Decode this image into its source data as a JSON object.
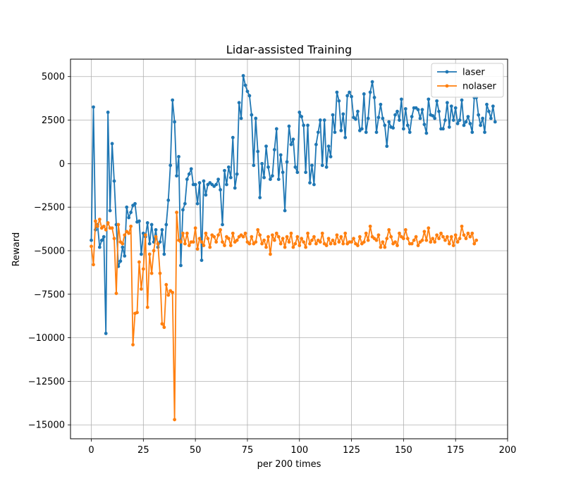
{
  "chart_data": {
    "type": "line",
    "title": "Lidar-assisted Training",
    "xlabel": "per 200 times",
    "ylabel": "Reward",
    "xlim": [
      -10,
      200
    ],
    "ylim": [
      -15800,
      6000
    ],
    "x_ticks": [
      0,
      25,
      50,
      75,
      100,
      125,
      150,
      175,
      200
    ],
    "y_ticks": [
      -15000,
      -12500,
      -10000,
      -7500,
      -5000,
      -2500,
      0,
      2500,
      5000
    ],
    "grid": true,
    "legend_position": "top-right",
    "series": [
      {
        "name": "laser",
        "color": "#1f77b4",
        "values": [
          -4400,
          3250,
          -3800,
          -3500,
          -4800,
          -4400,
          -4200,
          -9750,
          2950,
          -2700,
          1150,
          -1000,
          -3500,
          -5900,
          -5600,
          -4800,
          -5300,
          -2500,
          -3100,
          -2800,
          -2400,
          -2300,
          -3350,
          -3300,
          -5200,
          -4000,
          -4200,
          -3400,
          -4600,
          -3500,
          -4500,
          -3800,
          -4800,
          -4500,
          -3800,
          -5200,
          -3500,
          -2100,
          -100,
          3650,
          2400,
          -700,
          400,
          -5850,
          -2650,
          -2300,
          -900,
          -600,
          -300,
          -1200,
          -1200,
          -2300,
          -1100,
          -5550,
          -1000,
          -1800,
          -1200,
          -1100,
          -1200,
          -1300,
          -1200,
          -900,
          -1500,
          -3500,
          -400,
          -1200,
          -200,
          -800,
          1500,
          -1400,
          -600,
          3500,
          2600,
          5050,
          4500,
          4150,
          3900,
          2800,
          -100,
          2600,
          700,
          -1950,
          0,
          -800,
          1000,
          -200,
          -900,
          -700,
          800,
          2000,
          -900,
          500,
          -500,
          -2700,
          100,
          2150,
          1100,
          1400,
          -200,
          -500,
          2950,
          2700,
          2200,
          -500,
          2200,
          -1100,
          -100,
          -1200,
          1100,
          1800,
          2500,
          -100,
          2500,
          -200,
          1000,
          400,
          2800,
          1800,
          4100,
          3600,
          1900,
          2850,
          1500,
          3900,
          4100,
          3850,
          2650,
          2550,
          3000,
          1900,
          2000,
          4000,
          1800,
          2600,
          4100,
          4700,
          3800,
          1800,
          2650,
          3400,
          2600,
          2200,
          1000,
          2400,
          2100,
          2050,
          2800,
          3000,
          2500,
          3700,
          2000,
          3150,
          2200,
          1800,
          2700,
          3200,
          3200,
          3100,
          2600,
          3100,
          2250,
          1750,
          3700,
          2800,
          2750,
          2600,
          3600,
          3000,
          2000,
          2000,
          2500,
          3500,
          2100,
          3300,
          2500,
          3200,
          2300,
          2500,
          3650,
          2200,
          2400,
          2700,
          2300,
          1800,
          3800,
          3800,
          2800,
          2200,
          2600,
          1800,
          3400,
          3000,
          2600,
          3300,
          2400
        ]
      },
      {
        "name": "nolaser",
        "color": "#ff7f0e",
        "values": [
          -4750,
          -5800,
          -3300,
          -3600,
          -3200,
          -3700,
          -3600,
          -3800,
          -3400,
          -3700,
          -3700,
          -4300,
          -7450,
          -3500,
          -4500,
          -4600,
          -4100,
          -3900,
          -4000,
          -3600,
          -10400,
          -8600,
          -8550,
          -5650,
          -7200,
          -6050,
          -4100,
          -8250,
          -5200,
          -6300,
          -5000,
          -4200,
          -4600,
          -6300,
          -9200,
          -9400,
          -6950,
          -7550,
          -7300,
          -7400,
          -14700,
          -2800,
          -4400,
          -4500,
          -4000,
          -4600,
          -4000,
          -4700,
          -4500,
          -4500,
          -3700,
          -4900,
          -4300,
          -4500,
          -4700,
          -4000,
          -4300,
          -4800,
          -4100,
          -4200,
          -4500,
          -4100,
          -3800,
          -4500,
          -4700,
          -4200,
          -4300,
          -4700,
          -4000,
          -4500,
          -4400,
          -4200,
          -4100,
          -4200,
          -4000,
          -4500,
          -4600,
          -4200,
          -4600,
          -4500,
          -3800,
          -4100,
          -4600,
          -4400,
          -4800,
          -4200,
          -5200,
          -4100,
          -4400,
          -4000,
          -4200,
          -4600,
          -4300,
          -4800,
          -4200,
          -4500,
          -4000,
          -4800,
          -4600,
          -4200,
          -4700,
          -4300,
          -4500,
          -4800,
          -4000,
          -4600,
          -4400,
          -4200,
          -4600,
          -4400,
          -4500,
          -4000,
          -4600,
          -4700,
          -4300,
          -4600,
          -4400,
          -4600,
          -4100,
          -4500,
          -4200,
          -4600,
          -4000,
          -4600,
          -4500,
          -4500,
          -4300,
          -4600,
          -4700,
          -4200,
          -4600,
          -4500,
          -4000,
          -4400,
          -3600,
          -4200,
          -4300,
          -4400,
          -4100,
          -4800,
          -4500,
          -4800,
          -4300,
          -3800,
          -4200,
          -4600,
          -4500,
          -4700,
          -4000,
          -4200,
          -4300,
          -3800,
          -4300,
          -4600,
          -4600,
          -4400,
          -4200,
          -4700,
          -4500,
          -4400,
          -3900,
          -4400,
          -3700,
          -4500,
          -4300,
          -4500,
          -4100,
          -4300,
          -4000,
          -4200,
          -4400,
          -4200,
          -4600,
          -4200,
          -4700,
          -4100,
          -4500,
          -4300,
          -3600,
          -4100,
          -4300,
          -4000,
          -4200,
          -4000,
          -4600,
          -4400
        ]
      }
    ]
  }
}
